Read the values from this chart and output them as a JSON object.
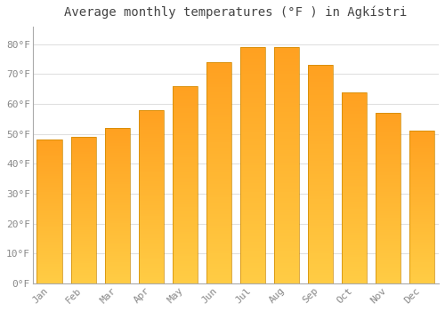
{
  "title": "Average monthly temperatures (°F ) in Agkístri",
  "months": [
    "Jan",
    "Feb",
    "Mar",
    "Apr",
    "May",
    "Jun",
    "Jul",
    "Aug",
    "Sep",
    "Oct",
    "Nov",
    "Dec"
  ],
  "values": [
    48,
    49,
    52,
    58,
    66,
    74,
    79,
    79,
    73,
    64,
    57,
    51
  ],
  "bar_color_bottom": "#FFCC44",
  "bar_color_top": "#FFA020",
  "background_color": "#FFFFFF",
  "plot_bg_color": "#FFFFFF",
  "grid_color": "#E0E0E0",
  "spine_color": "#AAAAAA",
  "ylim": [
    0,
    86
  ],
  "yticks": [
    0,
    10,
    20,
    30,
    40,
    50,
    60,
    70,
    80
  ],
  "ytick_labels": [
    "0°F",
    "10°F",
    "20°F",
    "30°F",
    "40°F",
    "50°F",
    "60°F",
    "70°F",
    "80°F"
  ],
  "title_fontsize": 10,
  "tick_fontsize": 8,
  "tick_color": "#888888",
  "title_color": "#444444",
  "bar_width": 0.75,
  "bar_edge_color": "#CC8800",
  "bar_edge_width": 0.5
}
